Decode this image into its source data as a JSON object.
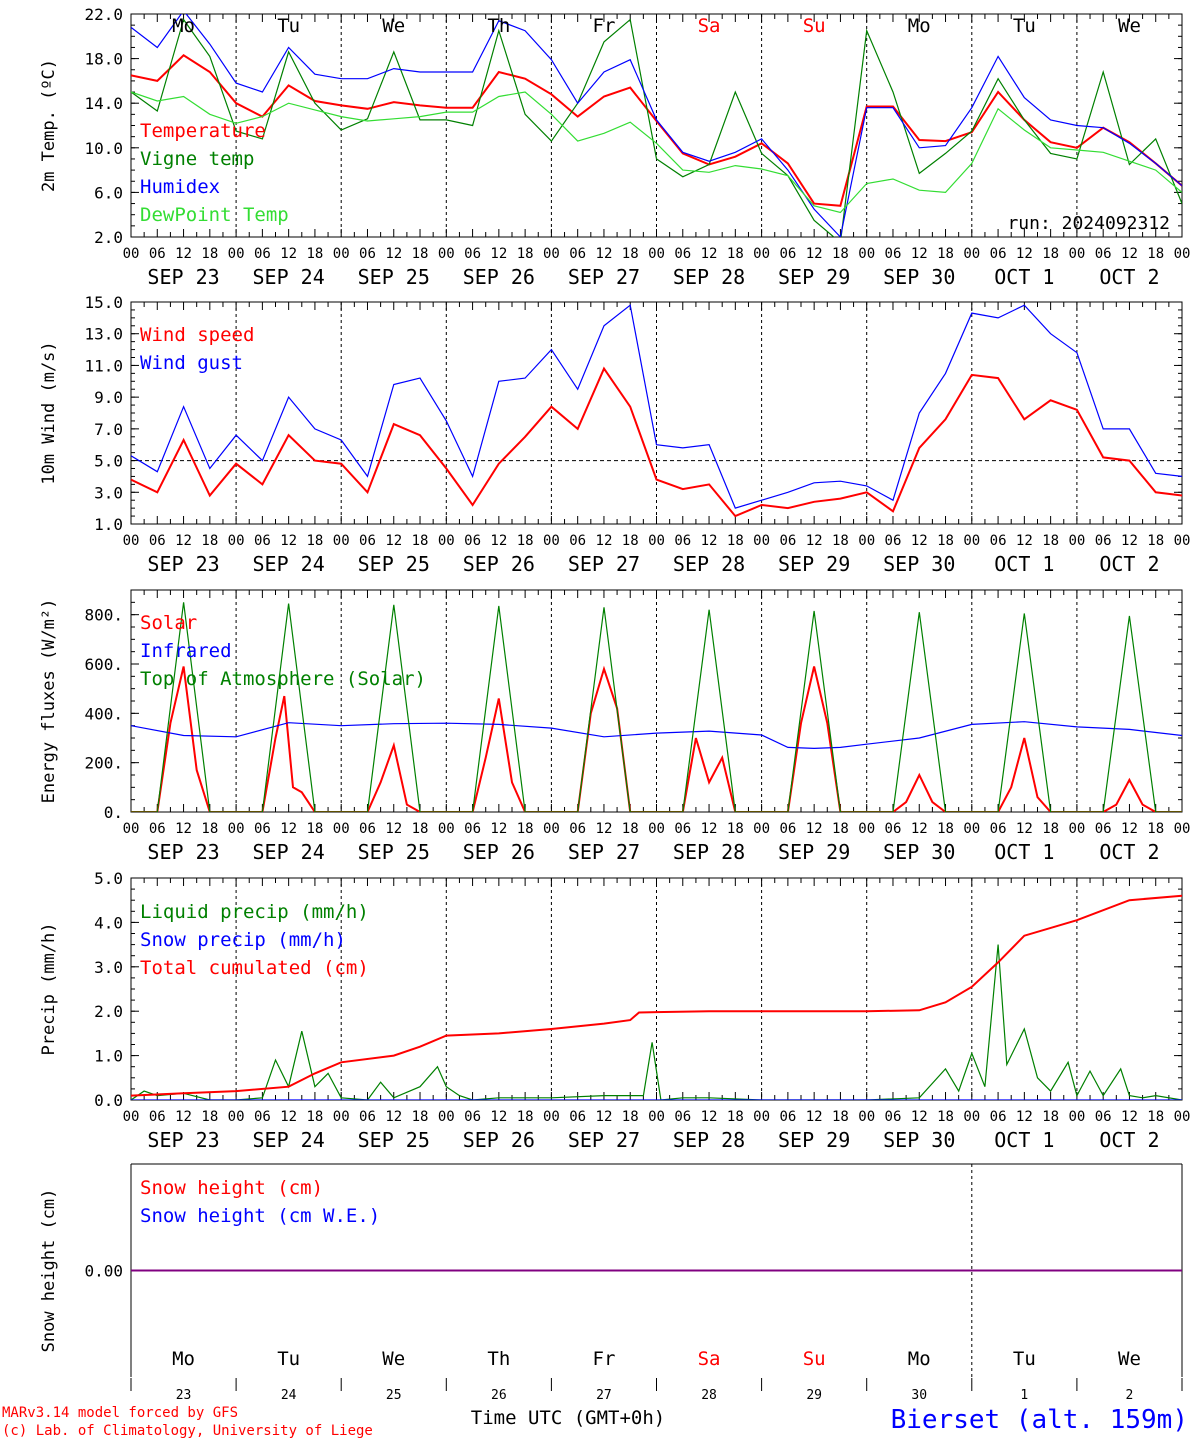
{
  "run_label": "run: 2024092312",
  "footer": {
    "credit_line1": "MARv3.14 model forced by GFS",
    "credit_line2": "(c) Lab. of Climatology, University of Liege",
    "time_label": "Time UTC (GMT+0h)",
    "station": "Bierset (alt. 159m)"
  },
  "colors": {
    "red": "#ff0000",
    "green": "#008000",
    "blue": "#0000ff",
    "lightgreen": "#33dd33",
    "purple": "#800080",
    "grid": "#000000"
  },
  "days": [
    {
      "dow": "Mo",
      "date": "SEP 23",
      "num": "23",
      "weekend": false
    },
    {
      "dow": "Tu",
      "date": "SEP 24",
      "num": "24",
      "weekend": false
    },
    {
      "dow": "We",
      "date": "SEP 25",
      "num": "25",
      "weekend": false
    },
    {
      "dow": "Th",
      "date": "SEP 26",
      "num": "26",
      "weekend": false
    },
    {
      "dow": "Fr",
      "date": "SEP 27",
      "num": "27",
      "weekend": false
    },
    {
      "dow": "Sa",
      "date": "SEP 28",
      "num": "28",
      "weekend": true
    },
    {
      "dow": "Su",
      "date": "SEP 29",
      "num": "29",
      "weekend": true
    },
    {
      "dow": "Mo",
      "date": "SEP 30",
      "num": "30",
      "weekend": false
    },
    {
      "dow": "Tu",
      "date": "OCT  1",
      "num": "1",
      "weekend": false
    },
    {
      "dow": "We",
      "date": "OCT  2",
      "num": "2",
      "weekend": false
    }
  ],
  "hour_ticks": [
    "00",
    "06",
    "12",
    "18"
  ],
  "chart_data": [
    {
      "id": "temp",
      "type": "line",
      "ylabel": "2m Temp. (ºC)",
      "yticks": [
        "2.0",
        "6.0",
        "10.0",
        "14.0",
        "18.0",
        "22.0"
      ],
      "ylim": [
        2,
        22
      ],
      "x_unit": "hours since 2024-09-23 00 UTC",
      "series": [
        {
          "name": "Temperature",
          "color": "red",
          "x": [
            0,
            6,
            12,
            18,
            24,
            30,
            36,
            42,
            48,
            54,
            60,
            66,
            72,
            78,
            84,
            90,
            96,
            102,
            108,
            114,
            120,
            126,
            132,
            138,
            144,
            150,
            156,
            162,
            168,
            174,
            180,
            186,
            192,
            198,
            204,
            210,
            216,
            222,
            228,
            234,
            240
          ],
          "y": [
            16.5,
            16,
            18.3,
            16.8,
            14,
            12.8,
            15.6,
            14.2,
            13.8,
            13.5,
            14.1,
            13.8,
            13.6,
            13.6,
            16.8,
            16.2,
            14.8,
            12.8,
            14.6,
            15.4,
            12.4,
            9.5,
            8.5,
            9.2,
            10.4,
            8.6,
            5,
            4.8,
            13.7,
            13.7,
            10.7,
            10.6,
            11.4,
            15,
            12.5,
            10.5,
            10,
            11.8,
            10.5,
            8.6,
            6.6
          ]
        },
        {
          "name": "Vigne temp",
          "color": "green",
          "x": [
            0,
            6,
            12,
            18,
            24,
            30,
            36,
            42,
            48,
            54,
            60,
            66,
            72,
            78,
            84,
            90,
            96,
            102,
            108,
            114,
            120,
            126,
            132,
            138,
            144,
            150,
            156,
            162,
            168,
            174,
            180,
            186,
            192,
            198,
            204,
            210,
            216,
            222,
            228,
            234,
            240
          ],
          "y": [
            15,
            13.3,
            21.5,
            18.2,
            11.5,
            10.8,
            18.6,
            14,
            11.6,
            12.6,
            18.6,
            12.5,
            12.5,
            12,
            20.5,
            13,
            10.6,
            14,
            19.5,
            21.5,
            9,
            7.4,
            8.5,
            15,
            9.5,
            7.5,
            3.5,
            1.5,
            20.5,
            15,
            7.7,
            9.5,
            11.5,
            16.2,
            12.5,
            9.5,
            9,
            16.8,
            8.5,
            10.8,
            5
          ]
        },
        {
          "name": "Humidex",
          "color": "blue",
          "x": [
            0,
            6,
            12,
            18,
            24,
            30,
            36,
            42,
            48,
            54,
            60,
            66,
            72,
            78,
            84,
            90,
            96,
            102,
            108,
            114,
            120,
            126,
            132,
            138,
            144,
            150,
            156,
            162,
            168,
            174,
            180,
            186,
            192,
            198,
            204,
            210,
            216,
            222,
            228,
            234,
            240
          ],
          "y": [
            20.8,
            19,
            22.3,
            19.3,
            15.8,
            15,
            19,
            16.6,
            16.2,
            16.2,
            17.1,
            16.8,
            16.8,
            16.8,
            21.4,
            20.5,
            17.9,
            14,
            16.8,
            17.9,
            12.5,
            9.6,
            8.8,
            9.6,
            10.8,
            8,
            4.5,
            2,
            13.6,
            13.6,
            10,
            10.2,
            13.6,
            18.2,
            14.5,
            12.5,
            12,
            11.8,
            10.4,
            8.6,
            6.6
          ]
        },
        {
          "name": "DewPoint Temp",
          "color": "lightgreen",
          "x": [
            0,
            6,
            12,
            18,
            24,
            30,
            36,
            42,
            48,
            54,
            60,
            66,
            72,
            78,
            84,
            90,
            96,
            102,
            108,
            114,
            120,
            126,
            132,
            138,
            144,
            150,
            156,
            162,
            168,
            174,
            180,
            186,
            192,
            198,
            204,
            210,
            216,
            222,
            228,
            234,
            240
          ],
          "y": [
            15,
            14.2,
            14.6,
            13,
            12.2,
            12.8,
            14,
            13.4,
            12.8,
            12.4,
            12.6,
            12.8,
            13.2,
            13.2,
            14.6,
            15,
            13,
            10.6,
            11.3,
            12.3,
            10.4,
            8,
            7.8,
            8.4,
            8.1,
            7.5,
            4.8,
            4.2,
            6.8,
            7.2,
            6.2,
            6,
            8.6,
            13.5,
            11.6,
            10,
            9.8,
            9.6,
            8.8,
            8,
            6
          ]
        }
      ]
    },
    {
      "id": "wind",
      "type": "line",
      "ylabel": "10m Wind (m/s)",
      "yticks": [
        "1.0",
        "3.0",
        "5.0",
        "7.0",
        "9.0",
        "11.0",
        "13.0",
        "15.0"
      ],
      "ylim": [
        1,
        15
      ],
      "refline": 5,
      "x_unit": "hours since 2024-09-23 00 UTC",
      "series": [
        {
          "name": "Wind speed",
          "color": "red",
          "x": [
            0,
            6,
            12,
            18,
            24,
            30,
            36,
            42,
            48,
            54,
            60,
            66,
            72,
            78,
            84,
            90,
            96,
            102,
            108,
            114,
            120,
            126,
            132,
            138,
            144,
            150,
            156,
            162,
            168,
            174,
            180,
            186,
            192,
            198,
            204,
            210,
            216,
            222,
            228,
            234,
            240
          ],
          "y": [
            3.8,
            3,
            6.3,
            2.8,
            4.8,
            3.5,
            6.6,
            5,
            4.8,
            3,
            7.3,
            6.6,
            4.5,
            2.2,
            4.8,
            6.5,
            8.4,
            7,
            10.8,
            8.4,
            3.8,
            3.2,
            3.5,
            1.5,
            2.2,
            2,
            2.4,
            2.6,
            3,
            1.8,
            5.8,
            7.6,
            10.4,
            10.2,
            7.6,
            8.8,
            8.2,
            5.2,
            5,
            3,
            2.8
          ]
        },
        {
          "name": "Wind gust",
          "color": "blue",
          "x": [
            0,
            6,
            12,
            18,
            24,
            30,
            36,
            42,
            48,
            54,
            60,
            66,
            72,
            78,
            84,
            90,
            96,
            102,
            108,
            114,
            120,
            126,
            132,
            138,
            144,
            150,
            156,
            162,
            168,
            174,
            180,
            186,
            192,
            198,
            204,
            210,
            216,
            222,
            228,
            234,
            240
          ],
          "y": [
            5.3,
            4.3,
            8.4,
            4.5,
            6.6,
            5,
            9,
            7,
            6.3,
            4,
            9.8,
            10.2,
            7.5,
            4,
            10,
            10.2,
            12,
            9.5,
            13.5,
            14.8,
            6,
            5.8,
            6,
            2,
            2.5,
            3,
            3.6,
            3.7,
            3.4,
            2.5,
            8,
            10.5,
            14.3,
            14,
            14.8,
            13,
            11.8,
            7,
            7,
            4.2,
            4
          ]
        }
      ]
    },
    {
      "id": "energy",
      "type": "line",
      "ylabel": "Energy fluxes (W/m²)",
      "yticks": [
        "0.",
        "200.",
        "400.",
        "600.",
        "800."
      ],
      "ylim": [
        0,
        900
      ],
      "x_unit": "hours since 2024-09-23 00 UTC",
      "series": [
        {
          "name": "Solar",
          "color": "red",
          "x": [
            0,
            6,
            9,
            12,
            15,
            18,
            24,
            30,
            33,
            35,
            37,
            39,
            42,
            54,
            57,
            60,
            63,
            66,
            78,
            81,
            84,
            87,
            90,
            102,
            105,
            108,
            111,
            114,
            126,
            129,
            132,
            135,
            138,
            150,
            153,
            156,
            159,
            162,
            174,
            177,
            180,
            183,
            186,
            198,
            201,
            204,
            207,
            210,
            222,
            225,
            228,
            231,
            234,
            240
          ],
          "y": [
            0,
            0,
            360,
            590,
            170,
            0,
            0,
            0,
            300,
            470,
            100,
            80,
            0,
            0,
            120,
            270,
            30,
            0,
            0,
            220,
            460,
            120,
            0,
            0,
            400,
            580,
            420,
            0,
            0,
            300,
            120,
            220,
            0,
            0,
            360,
            590,
            360,
            0,
            0,
            40,
            150,
            40,
            0,
            0,
            100,
            300,
            60,
            0,
            0,
            30,
            130,
            30,
            0,
            0
          ]
        },
        {
          "name": "Infrared",
          "color": "blue",
          "x": [
            0,
            12,
            24,
            36,
            48,
            60,
            72,
            84,
            96,
            108,
            120,
            132,
            144,
            150,
            156,
            162,
            168,
            180,
            192,
            204,
            216,
            228,
            240
          ],
          "y": [
            350,
            310,
            305,
            362,
            350,
            358,
            360,
            355,
            340,
            305,
            320,
            328,
            312,
            262,
            258,
            262,
            275,
            300,
            355,
            366,
            345,
            335,
            310
          ]
        },
        {
          "name": "Top of Atmosphere (Solar)",
          "color": "green",
          "x": [
            0,
            6,
            12,
            18,
            24,
            30,
            36,
            42,
            48,
            54,
            60,
            66,
            72,
            78,
            84,
            90,
            96,
            102,
            108,
            114,
            120,
            126,
            132,
            138,
            144,
            150,
            156,
            162,
            168,
            174,
            180,
            186,
            192,
            198,
            204,
            210,
            216,
            222,
            228,
            234,
            240
          ],
          "y": [
            0,
            0,
            850,
            0,
            0,
            0,
            845,
            0,
            0,
            0,
            840,
            0,
            0,
            0,
            835,
            0,
            0,
            0,
            830,
            0,
            0,
            0,
            820,
            0,
            0,
            0,
            815,
            0,
            0,
            0,
            810,
            0,
            0,
            0,
            805,
            0,
            0,
            0,
            795,
            0,
            0
          ]
        }
      ]
    },
    {
      "id": "precip",
      "type": "line",
      "ylabel": "Precip (mm/h)",
      "yticks": [
        "0.0",
        "1.0",
        "2.0",
        "3.0",
        "4.0",
        "5.0"
      ],
      "ylim": [
        0,
        5
      ],
      "x_unit": "hours since 2024-09-23 00 UTC",
      "series": [
        {
          "name": "Liquid precip (mm/h)",
          "color": "green",
          "x": [
            0,
            3,
            6,
            12,
            18,
            24,
            30,
            33,
            36,
            39,
            42,
            45,
            48,
            54,
            57,
            60,
            66,
            70,
            72,
            75,
            78,
            84,
            96,
            108,
            117,
            119,
            121,
            126,
            132,
            144,
            156,
            168,
            180,
            186,
            189,
            192,
            195,
            198,
            200,
            204,
            207,
            210,
            214,
            216,
            219,
            222,
            226,
            228,
            231,
            234,
            240
          ],
          "y": [
            0,
            0.2,
            0.1,
            0.15,
            0,
            0,
            0.05,
            0.9,
            0.3,
            1.55,
            0.3,
            0.6,
            0.05,
            0,
            0.4,
            0.05,
            0.3,
            0.75,
            0.3,
            0.1,
            0,
            0.05,
            0.05,
            0.1,
            0.1,
            1.3,
            0,
            0.05,
            0.05,
            0,
            0,
            0,
            0.05,
            0.7,
            0.2,
            1.05,
            0.3,
            3.5,
            0.8,
            1.6,
            0.5,
            0.2,
            0.85,
            0.1,
            0.65,
            0.1,
            0.7,
            0.1,
            0.05,
            0.1,
            0
          ]
        },
        {
          "name": "Snow precip (mm/h)",
          "color": "blue",
          "x": [
            0,
            240
          ],
          "y": [
            0,
            0
          ]
        },
        {
          "name": "Total cumulated (cm)",
          "color": "red",
          "x": [
            0,
            12,
            24,
            36,
            42,
            48,
            60,
            66,
            72,
            84,
            96,
            108,
            114,
            116,
            120,
            132,
            156,
            168,
            180,
            186,
            192,
            198,
            204,
            216,
            228,
            240
          ],
          "y": [
            0.1,
            0.15,
            0.2,
            0.3,
            0.6,
            0.85,
            1,
            1.2,
            1.45,
            1.5,
            1.6,
            1.72,
            1.8,
            1.97,
            1.98,
            2,
            2,
            2,
            2.02,
            2.2,
            2.55,
            3.1,
            3.7,
            4.05,
            4.5,
            4.6
          ]
        }
      ]
    },
    {
      "id": "snow",
      "type": "line",
      "ylabel": "Snow height (cm)",
      "yticks": [
        "0.00"
      ],
      "ylim": [
        -1,
        1
      ],
      "x_unit": "hours since 2024-09-23 00 UTC",
      "series": [
        {
          "name": "Snow height (cm)",
          "color": "red",
          "x": [
            0,
            240
          ],
          "y": [
            0,
            0
          ]
        },
        {
          "name": "Snow height (cm W.E.)",
          "color": "blue",
          "x": [
            0,
            240
          ],
          "y": [
            0,
            0
          ]
        }
      ]
    }
  ]
}
